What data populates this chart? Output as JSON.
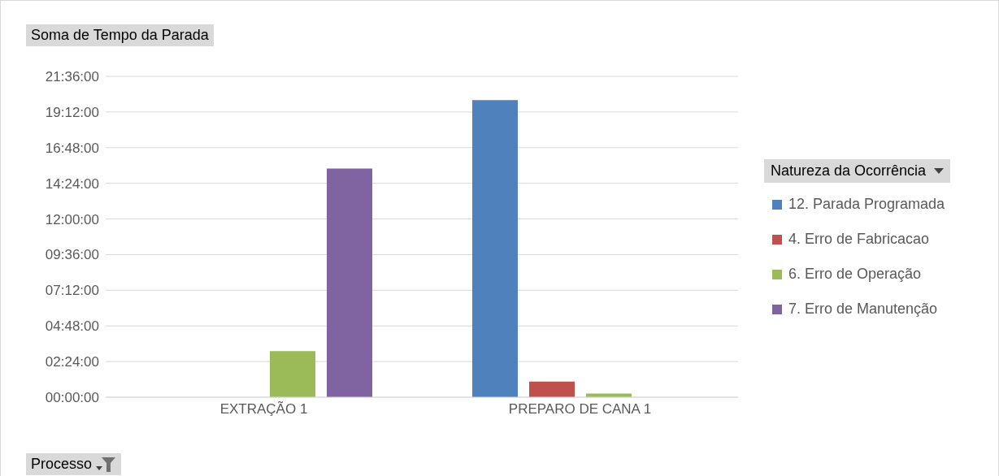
{
  "chart_data": {
    "type": "bar",
    "ylabel": "Soma de Tempo da Parada",
    "xlabel": "Processo",
    "legend_title": "Natureza da Ocorrência",
    "categories": [
      "EXTRAÇÃO 1",
      "PREPARO DE CANA 1"
    ],
    "series": [
      {
        "name": "12. Parada Programada",
        "color": "#4f81bd",
        "values": [
          null,
          20.0
        ]
      },
      {
        "name": "4. Erro de Fabricacao",
        "color": "#c0504d",
        "values": [
          null,
          1.05
        ]
      },
      {
        "name": "6. Erro de Operação",
        "color": "#9bbb59",
        "values": [
          3.1,
          0.25
        ]
      },
      {
        "name": "7. Erro de Manutenção",
        "color": "#8064a2",
        "values": [
          15.4,
          null
        ]
      }
    ],
    "ylim": [
      0,
      21.6
    ],
    "yticks": [
      {
        "value": 0,
        "label": "00:00:00"
      },
      {
        "value": 2.4,
        "label": "02:24:00"
      },
      {
        "value": 4.8,
        "label": "04:48:00"
      },
      {
        "value": 7.2,
        "label": "07:12:00"
      },
      {
        "value": 9.6,
        "label": "09:36:00"
      },
      {
        "value": 12,
        "label": "12:00:00"
      },
      {
        "value": 14.4,
        "label": "14:24:00"
      },
      {
        "value": 16.8,
        "label": "16:48:00"
      },
      {
        "value": 19.2,
        "label": "19:12:00"
      },
      {
        "value": 21.6,
        "label": "21:36:00"
      }
    ],
    "grid": "y",
    "legend": "right"
  }
}
